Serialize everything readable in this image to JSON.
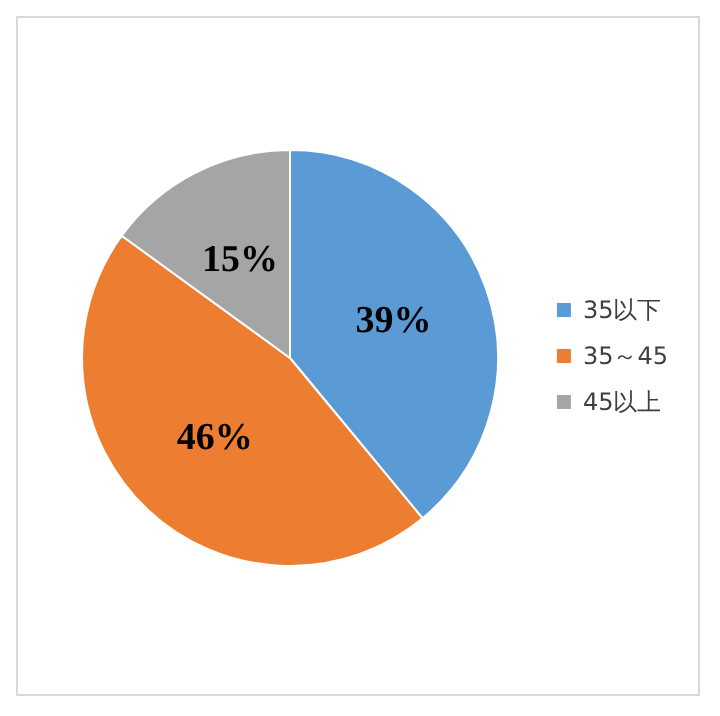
{
  "chart_data": {
    "type": "pie",
    "categories": [
      "35以下",
      "35～45",
      "45以上"
    ],
    "values": [
      39,
      46,
      15
    ],
    "colors": [
      "#5b9bd5",
      "#ed7d31",
      "#a5a5a5"
    ],
    "value_labels": [
      "39%",
      "46%",
      "15%"
    ],
    "legend": "right"
  }
}
